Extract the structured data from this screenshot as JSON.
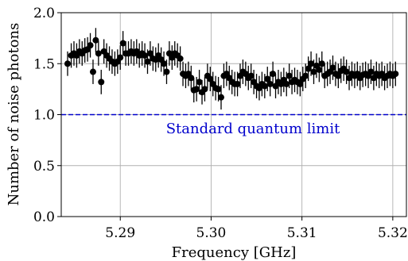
{
  "chart_data": {
    "type": "scatter",
    "title": "",
    "xlabel": "Frequency [GHz]",
    "ylabel": "Number of noise photons",
    "xlim": [
      5.2835,
      5.3215
    ],
    "ylim": [
      0.0,
      2.0
    ],
    "xticks": [
      5.29,
      5.3,
      5.31,
      5.32
    ],
    "xtick_labels": [
      "5.29",
      "5.30",
      "5.31",
      "5.32"
    ],
    "yticks": [
      0.0,
      0.5,
      1.0,
      1.5,
      2.0
    ],
    "ytick_labels": [
      "0.0",
      "0.5",
      "1.0",
      "1.5",
      "2.0"
    ],
    "grid": true,
    "marker_color": "#000000",
    "error_bars": true,
    "reference_line": {
      "y": 1.0,
      "style": "dashed",
      "color": "#0000cc",
      "label": "Standard quantum limit"
    },
    "x": [
      5.2842,
      5.2846,
      5.2849,
      5.2852,
      5.2855,
      5.2858,
      5.2861,
      5.2864,
      5.2867,
      5.287,
      5.2873,
      5.2876,
      5.2879,
      5.2882,
      5.2885,
      5.2888,
      5.2891,
      5.2894,
      5.2897,
      5.29,
      5.2903,
      5.2906,
      5.2909,
      5.2912,
      5.2915,
      5.2918,
      5.2921,
      5.2924,
      5.2927,
      5.293,
      5.2933,
      5.2936,
      5.2939,
      5.2942,
      5.2945,
      5.2948,
      5.2951,
      5.2954,
      5.2957,
      5.296,
      5.2963,
      5.2966,
      5.2969,
      5.2972,
      5.2975,
      5.2978,
      5.2981,
      5.2984,
      5.2987,
      5.299,
      5.2993,
      5.2996,
      5.2999,
      5.3002,
      5.3005,
      5.3008,
      5.3011,
      5.3014,
      5.3017,
      5.302,
      5.3023,
      5.3026,
      5.3029,
      5.3032,
      5.3035,
      5.3038,
      5.3041,
      5.3044,
      5.3047,
      5.305,
      5.3053,
      5.3056,
      5.3059,
      5.3062,
      5.3065,
      5.3068,
      5.3071,
      5.3074,
      5.3077,
      5.308,
      5.3083,
      5.3086,
      5.3089,
      5.3092,
      5.3095,
      5.3098,
      5.3101,
      5.3104,
      5.3107,
      5.311,
      5.3113,
      5.3116,
      5.3119,
      5.3122,
      5.3125,
      5.3128,
      5.3131,
      5.3134,
      5.3137,
      5.314,
      5.3143,
      5.3146,
      5.3149,
      5.3152,
      5.3155,
      5.3158,
      5.3161,
      5.3164,
      5.3167,
      5.317,
      5.3173,
      5.3176,
      5.3179,
      5.3182,
      5.3185,
      5.3188,
      5.3191,
      5.3194,
      5.3197,
      5.32,
      5.3203
    ],
    "y": [
      1.5,
      1.58,
      1.6,
      1.58,
      1.62,
      1.6,
      1.63,
      1.64,
      1.68,
      1.42,
      1.73,
      1.6,
      1.32,
      1.62,
      1.58,
      1.55,
      1.52,
      1.5,
      1.52,
      1.56,
      1.7,
      1.6,
      1.6,
      1.62,
      1.6,
      1.62,
      1.58,
      1.6,
      1.58,
      1.52,
      1.6,
      1.55,
      1.54,
      1.58,
      1.54,
      1.5,
      1.42,
      1.6,
      1.56,
      1.6,
      1.58,
      1.55,
      1.4,
      1.38,
      1.4,
      1.36,
      1.24,
      1.25,
      1.32,
      1.22,
      1.25,
      1.38,
      1.35,
      1.3,
      1.26,
      1.25,
      1.17,
      1.38,
      1.4,
      1.36,
      1.32,
      1.3,
      1.3,
      1.38,
      1.42,
      1.4,
      1.36,
      1.38,
      1.32,
      1.28,
      1.26,
      1.3,
      1.28,
      1.35,
      1.3,
      1.4,
      1.28,
      1.32,
      1.3,
      1.34,
      1.3,
      1.38,
      1.32,
      1.34,
      1.32,
      1.3,
      1.35,
      1.38,
      1.45,
      1.5,
      1.42,
      1.48,
      1.44,
      1.5,
      1.38,
      1.4,
      1.42,
      1.46,
      1.4,
      1.38,
      1.43,
      1.45,
      1.42,
      1.36,
      1.4,
      1.38,
      1.4,
      1.36,
      1.39,
      1.4,
      1.38,
      1.42,
      1.36,
      1.4,
      1.38,
      1.4,
      1.36,
      1.38,
      1.4,
      1.38,
      1.4
    ],
    "y_err": 0.12
  }
}
